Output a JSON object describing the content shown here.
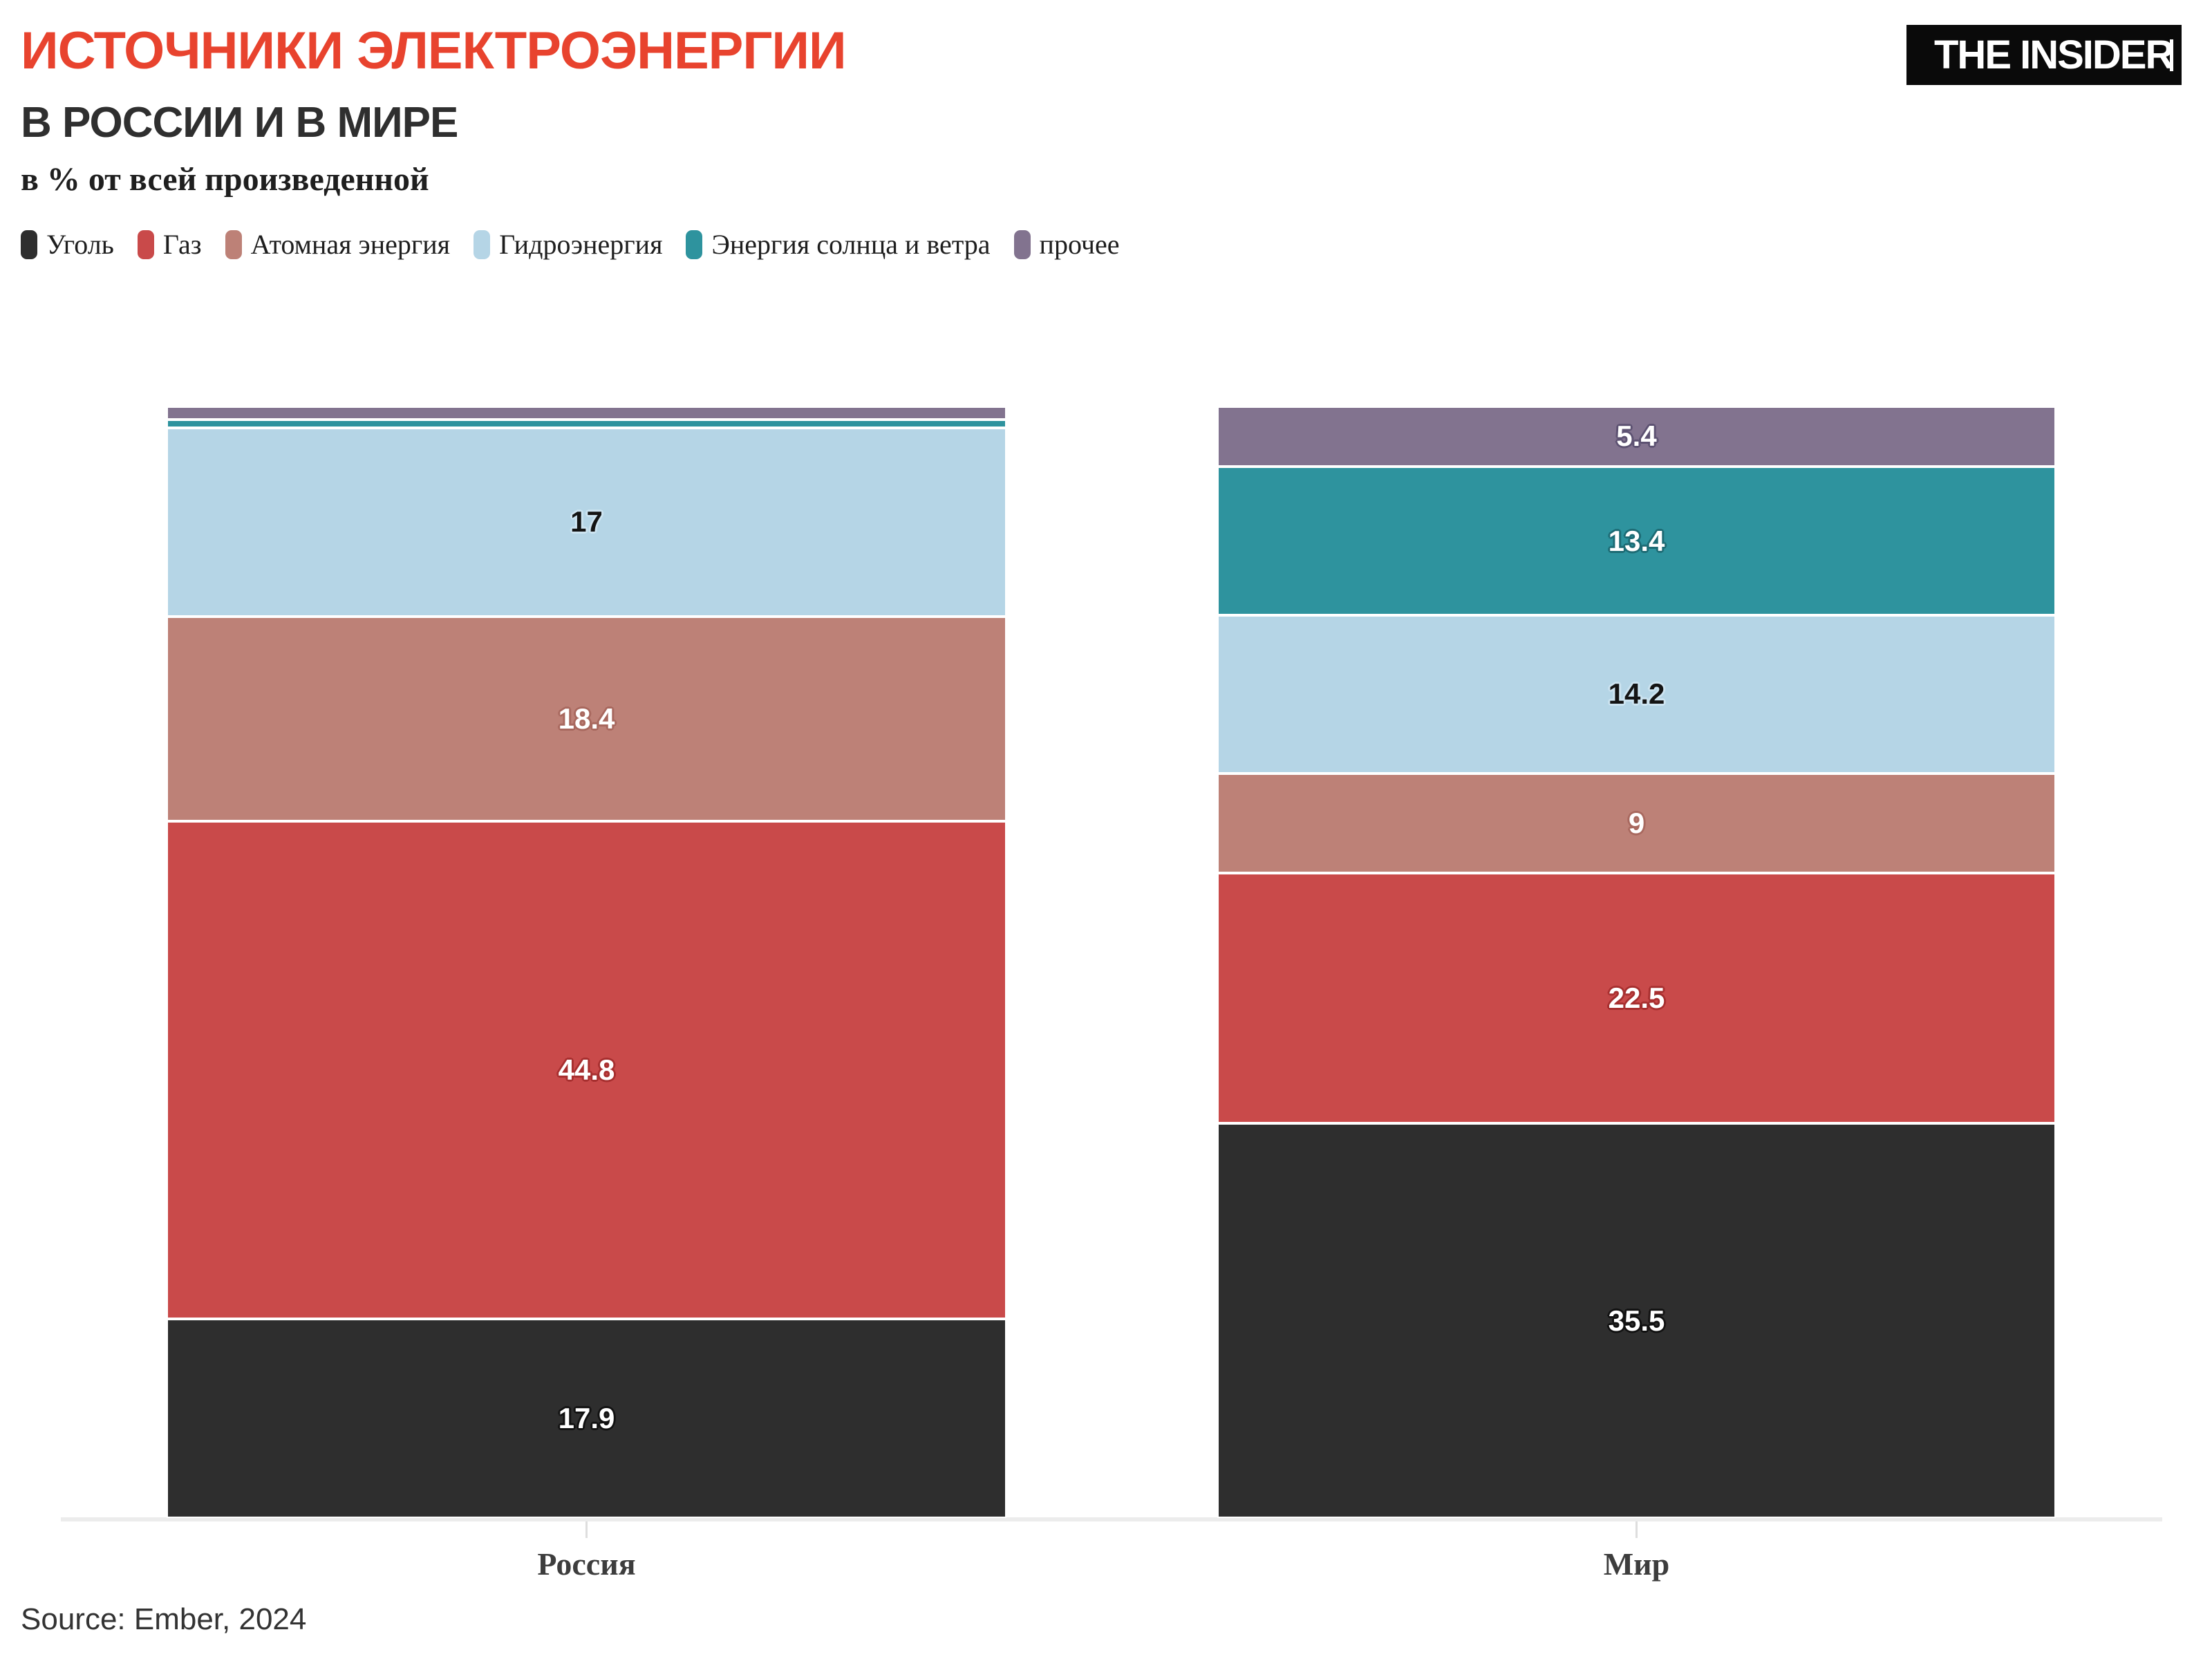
{
  "header": {
    "title": "ИСТОЧНИКИ ЭЛЕКТРОЭНЕРГИИ",
    "title_color": "#E8432E",
    "subtitle": "В РОССИИ И В МИРЕ",
    "unit_note": "в % от всей произведенной",
    "logo_text": "THE INSIDER"
  },
  "legend": [
    {
      "key": "coal",
      "label": "Уголь",
      "color": "#2E2E2E"
    },
    {
      "key": "gas",
      "label": "Газ",
      "color": "#C94A4A"
    },
    {
      "key": "nuclear",
      "label": "Атомная энергия",
      "color": "#BD8177"
    },
    {
      "key": "hydro",
      "label": "Гидроэнергия",
      "color": "#B5D5E6"
    },
    {
      "key": "solar-wind",
      "label": "Энергия солнца и ветра",
      "color": "#2E939E"
    },
    {
      "key": "other",
      "label": "прочее",
      "color": "#82738F"
    }
  ],
  "chart_data": {
    "type": "bar",
    "stacked": true,
    "orientation": "vertical",
    "value_unit": "%",
    "ylim": [
      0,
      100
    ],
    "grid": false,
    "axis_line_color": "#ECECEC",
    "categories": [
      "Россия",
      "Мир"
    ],
    "category_keys": [
      "russia",
      "world"
    ],
    "series": [
      {
        "key": "coal",
        "name": "Уголь",
        "color": "#2E2E2E",
        "label_color": "#ffffff",
        "halo": "#111111",
        "values": [
          17.9,
          35.5
        ],
        "labels": [
          "17.9",
          "35.5"
        ]
      },
      {
        "key": "gas",
        "name": "Газ",
        "color": "#C94A4A",
        "label_color": "#ffffff",
        "halo": "#a72f2f",
        "values": [
          44.8,
          22.5
        ],
        "labels": [
          "44.8",
          "22.5"
        ]
      },
      {
        "key": "nuclear",
        "name": "Атомная энергия",
        "color": "#BD8177",
        "label_color": "#ffffff",
        "halo": "#a8685e",
        "values": [
          18.4,
          9
        ],
        "labels": [
          "18.4",
          "9"
        ]
      },
      {
        "key": "hydro",
        "name": "Гидроэнергия",
        "color": "#B5D5E6",
        "label_color": "#141414",
        "halo": "#cde4f1",
        "values": [
          17,
          14.2
        ],
        "labels": [
          "17",
          "14.2"
        ]
      },
      {
        "key": "solar-wind",
        "name": "Энергия солнца и ветра",
        "color": "#2E939E",
        "label_color": "#ffffff",
        "halo": "#1d6b74",
        "values": [
          0.7,
          13.4
        ],
        "labels": [
          "",
          "13.4"
        ]
      },
      {
        "key": "other",
        "name": "прочее",
        "color": "#82738F",
        "label_color": "#ffffff",
        "halo": "#5d5272",
        "values": [
          1.2,
          5.4
        ],
        "labels": [
          "",
          "5.4"
        ]
      }
    ]
  },
  "footer": {
    "source": "Source: Ember, 2024"
  }
}
